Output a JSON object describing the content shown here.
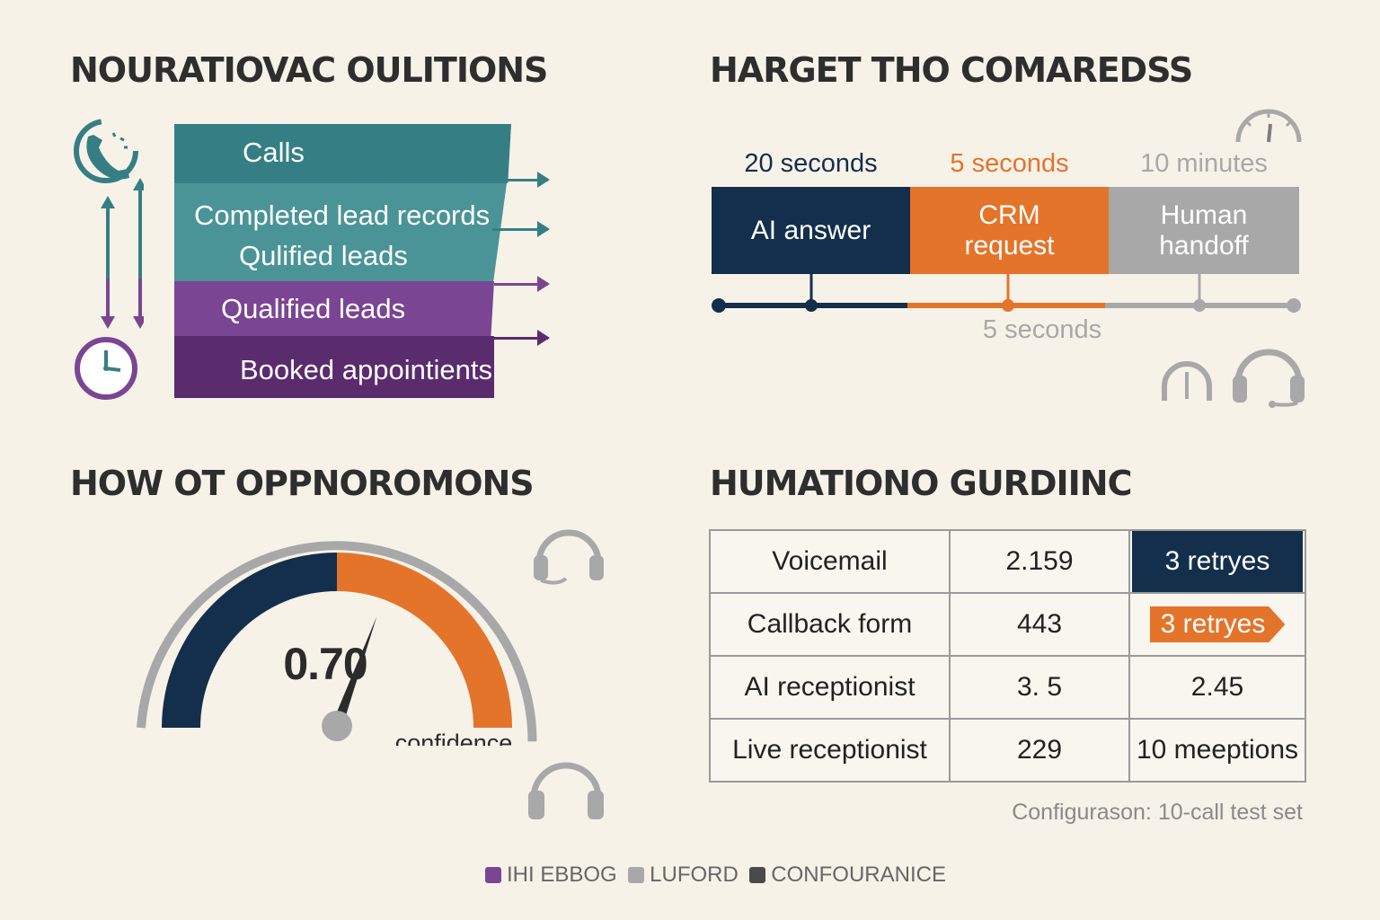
{
  "colors": {
    "background": "#f7f2e8",
    "navy": "#132f4c",
    "orange": "#e4742a",
    "gray": "#a8a8a8",
    "teal_dark": "#357f84",
    "teal_light": "#4a9497",
    "purple": "#7a4593",
    "purple_dark": "#5a2c6e"
  },
  "icons": [
    "phone-icon",
    "clock-icon",
    "gauge-icon",
    "headset-icon"
  ],
  "panels": {
    "top_left": {
      "title": "NOURATIOVAC OULITIONS"
    },
    "top_right": {
      "title": "HARGET THO COMAREDSS"
    },
    "bottom_left": {
      "title": "HOW OT OPPNOROMONS"
    },
    "bottom_right": {
      "title": "HUMATIONO GURDIINC",
      "footnote": "Configurason: 10-call test set"
    }
  },
  "chart_data": [
    {
      "type": "funnel",
      "stages": [
        "Calls",
        "Completed lead records",
        "Qulified leads",
        "Qualified leads",
        "Booked appointients"
      ]
    },
    {
      "type": "timeline",
      "steps": [
        {
          "duration": "20 seconds",
          "name": "AI answer",
          "color": "#132f4c"
        },
        {
          "duration": "5 seconds",
          "name": "CRM request",
          "color": "#e4742a"
        },
        {
          "duration": "10 minutes",
          "name": "Human handoff",
          "color": "#a8a8a8"
        }
      ],
      "axis_note": "5 seconds"
    },
    {
      "type": "gauge",
      "value": 0.7,
      "value_label": "0.70",
      "label": "confidence",
      "range": [
        0,
        1
      ]
    },
    {
      "type": "table",
      "rows": [
        [
          "Voicemail",
          "2.159",
          "3 retryes"
        ],
        [
          "Callback form",
          "443",
          "3 retryes"
        ],
        [
          "AI receptionist",
          "3. 5",
          "2.45"
        ],
        [
          "Live receptionist",
          "229",
          "10 meeptions"
        ]
      ]
    }
  ],
  "legend": [
    {
      "label": "IHI EBBOG",
      "color": "#7a4593"
    },
    {
      "label": "LUFORD",
      "color": "#a8a8a8"
    },
    {
      "label": "CONFOURANICE",
      "color": "#4a4a4a"
    }
  ]
}
